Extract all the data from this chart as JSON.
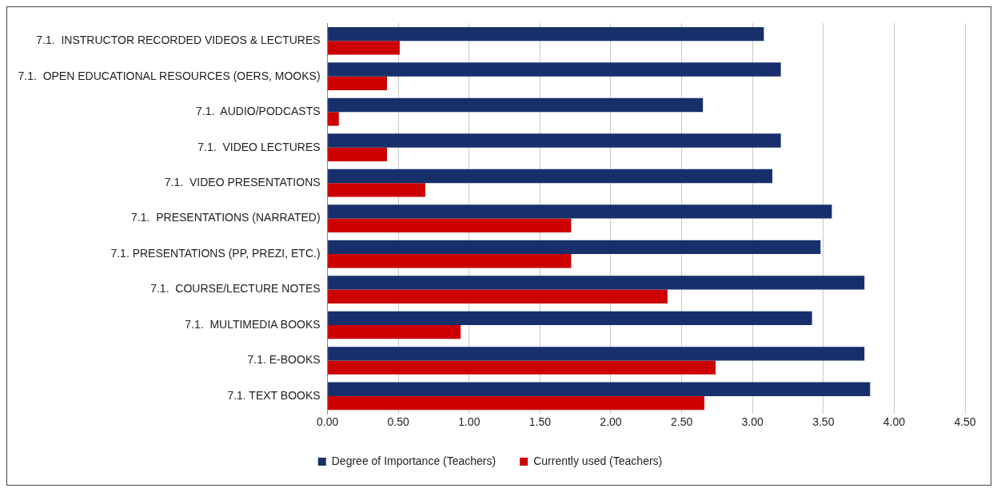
{
  "chart_data": {
    "type": "bar",
    "orientation": "horizontal",
    "categories": [
      "7.1.  INSTRUCTOR RECORDED VIDEOS & LECTURES",
      "7.1.  OPEN EDUCATIONAL RESOURCES (OERS, MOOKS)",
      "7.1.  AUDIO/PODCASTS",
      "7.1.  VIDEO LECTURES",
      "7.1.  VIDEO PRESENTATIONS",
      "7.1.  PRESENTATIONS (NARRATED)",
      "7.1. PRESENTATIONS (PP, PREZI, ETC.)",
      "7.1.  COURSE/LECTURE NOTES",
      "7.1.  MULTIMEDIA BOOKS",
      "7.1. E-BOOKS",
      "7.1. TEXT BOOKS"
    ],
    "series": [
      {
        "name": "Degree of Importance (Teachers)",
        "color": "#17306b",
        "values": [
          3.08,
          3.2,
          2.65,
          3.2,
          3.14,
          3.56,
          3.48,
          3.79,
          3.42,
          3.79,
          3.83
        ]
      },
      {
        "name": "Currently used (Teachers)",
        "color": "#cc0000",
        "values": [
          0.51,
          0.42,
          0.08,
          0.42,
          0.69,
          1.72,
          1.72,
          2.4,
          0.94,
          2.74,
          2.66
        ]
      }
    ],
    "xlim": [
      0,
      4.5
    ],
    "xticks": [
      {
        "value": 0,
        "label": "0.00"
      },
      {
        "value": 0.5,
        "label": "0.50"
      },
      {
        "value": 1,
        "label": "1.00"
      },
      {
        "value": 1.5,
        "label": "1.50"
      },
      {
        "value": 2,
        "label": "2.00"
      },
      {
        "value": 2.5,
        "label": "2.50"
      },
      {
        "value": 3,
        "label": "3.00"
      },
      {
        "value": 3.5,
        "label": "3.50"
      },
      {
        "value": 4,
        "label": "4.00"
      },
      {
        "value": 4.5,
        "label": "4.50"
      }
    ],
    "grid": "x",
    "legend": "bottom"
  }
}
